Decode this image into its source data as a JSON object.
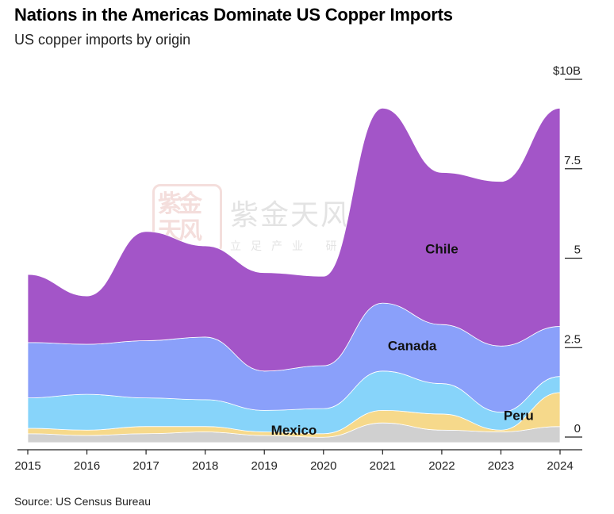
{
  "title": "Nations in the Americas Dominate US Copper Imports",
  "subtitle": "US copper imports by origin",
  "source": "Source: US Census Bureau",
  "watermark": {
    "company": "紫金天风期货",
    "slogan": "立足产业 研究驱动",
    "seal": "紫金天风"
  },
  "chart_data": {
    "type": "area",
    "stacked": true,
    "x": [
      "2015",
      "2016",
      "2017",
      "2018",
      "2019",
      "2020",
      "2021",
      "2022",
      "2023",
      "2024"
    ],
    "yticks": [
      "0",
      "2.5",
      "5",
      "7.5",
      "$10B"
    ],
    "ylim": [
      0,
      10
    ],
    "unit": "USD billions",
    "series": [
      {
        "name": "",
        "color": "#d0d0d0",
        "values": [
          0.25,
          0.2,
          0.25,
          0.3,
          0.2,
          0.15,
          0.55,
          0.35,
          0.3,
          0.45
        ]
      },
      {
        "name": "Peru",
        "color": "#f6d98b",
        "values": [
          0.15,
          0.15,
          0.2,
          0.15,
          0.1,
          0.1,
          0.35,
          0.45,
          0.05,
          0.95
        ]
      },
      {
        "name": "Mexico",
        "color": "#87d4fa",
        "values": [
          0.85,
          1.0,
          0.8,
          0.75,
          0.6,
          0.7,
          1.1,
          0.85,
          0.5,
          0.45
        ]
      },
      {
        "name": "Canada",
        "color": "#8aa0fa",
        "values": [
          1.55,
          1.4,
          1.6,
          1.75,
          1.1,
          1.2,
          1.9,
          1.65,
          1.85,
          1.4
        ]
      },
      {
        "name": "Chile",
        "color": "#a355c8",
        "values": [
          1.9,
          1.35,
          3.05,
          2.55,
          2.75,
          2.5,
          5.45,
          4.25,
          4.6,
          6.1
        ]
      }
    ]
  }
}
